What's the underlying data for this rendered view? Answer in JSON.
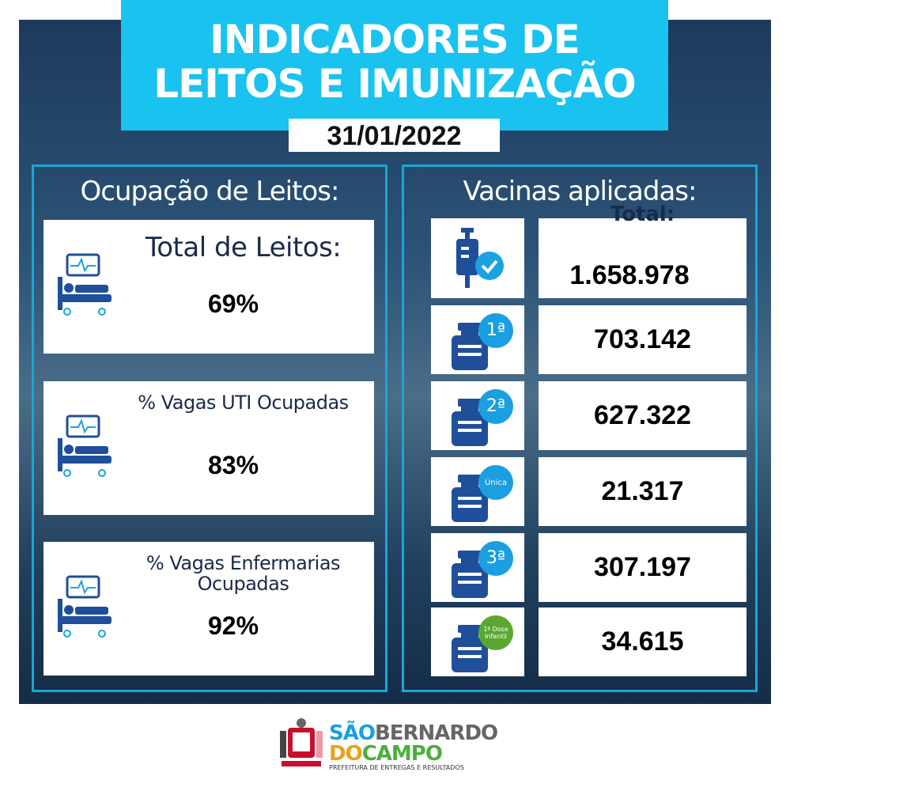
{
  "header": {
    "title_lines": [
      "INDICADORES DE",
      "LEITOS E IMUNIZAÇÃO"
    ],
    "date": "31/01/2022"
  },
  "beds": {
    "heading": "Ocupação de Leitos:",
    "cards": [
      {
        "label": "Total de Leitos:",
        "value": "69%"
      },
      {
        "label": "% Vagas UTI Ocupadas",
        "value": "83%"
      },
      {
        "label": "% Vagas Enfermarias Ocupadas",
        "value": "92%"
      }
    ]
  },
  "vaccines": {
    "heading": "Vacinas aplicadas:",
    "rows": [
      {
        "label": "Total:",
        "value": "1.658.978"
      },
      {
        "badge": "1ª",
        "value": "703.142"
      },
      {
        "badge": "2ª",
        "value": "627.322"
      },
      {
        "badge": "Única",
        "value": "21.317"
      },
      {
        "badge": "3ª",
        "value": "307.197"
      },
      {
        "badge": "1ª Dose Infantil",
        "value": "34.615"
      }
    ]
  },
  "footer": {
    "logo_sao": "SÃO",
    "logo_bernardo": "BERNARDO",
    "logo_do": "DO",
    "logo_campo": "CAMPO",
    "tagline": "PREFEITURA DE ENTREGAS E RESULTADOS"
  }
}
